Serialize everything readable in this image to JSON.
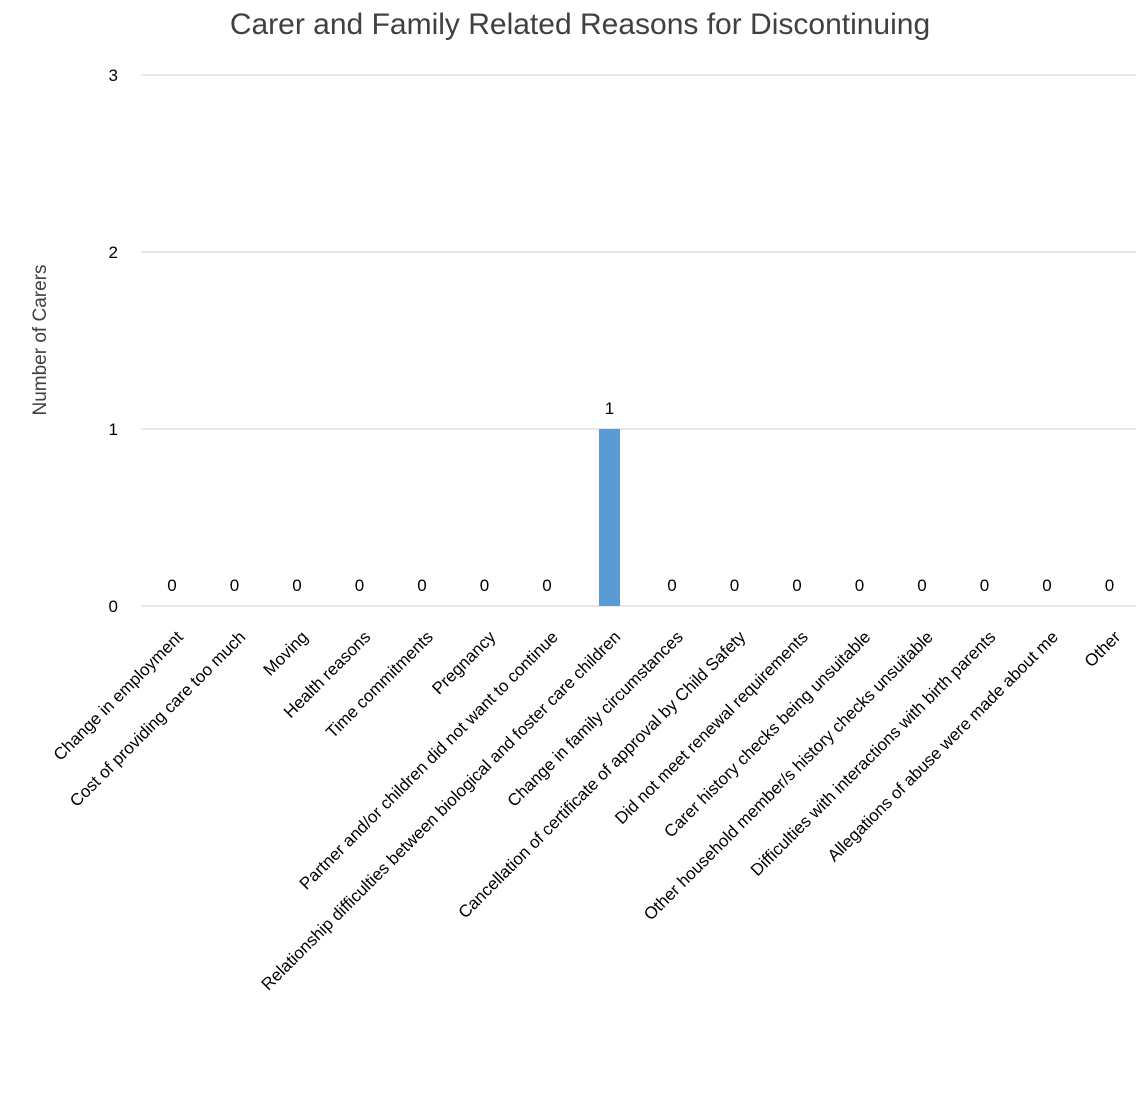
{
  "chart_data": {
    "type": "bar",
    "title": "Carer and Family Related Reasons for Discontinuing",
    "xlabel": "",
    "ylabel": "Number of Carers",
    "ylim": [
      0,
      3
    ],
    "yticks": [
      "0",
      "1",
      "2",
      "3"
    ],
    "grid": true,
    "legend": "none",
    "bar_color": "#5b9bd5",
    "categories": [
      "Change in employment",
      "Cost of providing care too much",
      "Moving",
      "Health reasons",
      "Time commitments",
      "Pregnancy",
      "Partner and/or children did not want to continue",
      "Relationship difficulties between biological and foster care children",
      "Change in family circumstances",
      "Cancellation of certificate of approval by Child Safety",
      "Did not meet renewal requirements",
      "Carer history checks being unsuitable",
      "Other household member/s history checks unsuitable",
      "Difficulties with interactions with birth parents",
      "Allegations of abuse were made about me",
      "Other"
    ],
    "values": [
      0,
      0,
      0,
      0,
      0,
      0,
      0,
      1,
      0,
      0,
      0,
      0,
      0,
      0,
      0,
      0
    ],
    "data_labels": [
      "0",
      "0",
      "0",
      "0",
      "0",
      "0",
      "0",
      "1",
      "0",
      "0",
      "0",
      "0",
      "0",
      "0",
      "0",
      "0"
    ]
  }
}
